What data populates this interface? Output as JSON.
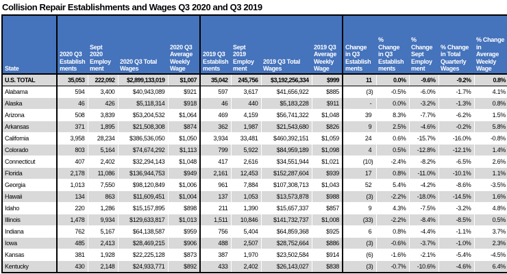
{
  "title": "Collision Repair Establishments and Wages Q3 2020 and Q3 2019",
  "colors": {
    "header_bg": "#4573BC",
    "header_text": "#FFFFFF",
    "row_alt_bg": "#D9D9D9",
    "row_bg": "#FFFFFF",
    "border": "#000000"
  },
  "table": {
    "columns": [
      {
        "label": "State"
      },
      {
        "label": "2020 Q3\nEstablish\nments"
      },
      {
        "label": "Sept\n2020\nEmploy\nment"
      },
      {
        "label": "2020 Q3 Total\nWages"
      },
      {
        "label": "2020 Q3\nAverage\nWeekly\nWage"
      },
      {
        "label": "2019 Q3\nEstablish\nments"
      },
      {
        "label": "Sept\n2019\nEmploy\nment"
      },
      {
        "label": "2019 Q3 Total\nWages"
      },
      {
        "label": "2019 Q3\nAverage\nWeekly\nWage"
      },
      {
        "label": "Change\nin Q3\nEstablish\nments"
      },
      {
        "label": "%\nChange\nin Q3\nEstablish\nments"
      },
      {
        "label": "%\nChange\nSept\nEmploy\nment"
      },
      {
        "label": "% Change\nin Total\nQuarterly\nWages"
      },
      {
        "label": "% Change\nin\nAverage\nWeekly\nWage"
      }
    ],
    "rows": [
      {
        "state": "U.S. TOTAL",
        "total": true,
        "values": [
          "35,053",
          "222,092",
          "$2,899,133,019",
          "$1,007",
          "35,042",
          "245,756",
          "$3,192,256,334",
          "$999",
          "11 ",
          "0.0%",
          "-9.6%",
          "-9.2%",
          "0.8%"
        ]
      },
      {
        "state": "Alabama",
        "values": [
          "594",
          "3,400",
          "$40,943,089",
          "$921",
          "597",
          "3,617",
          "$41,656,922",
          "$885",
          "(3)",
          "-0.5%",
          "-6.0%",
          "-1.7%",
          "4.1%"
        ]
      },
      {
        "state": "Alaska",
        "values": [
          "46",
          "426",
          "$5,118,314",
          "$918",
          "46",
          "440",
          "$5,183,228",
          "$911",
          "- ",
          "0.0%",
          "-3.2%",
          "-1.3%",
          "0.8%"
        ]
      },
      {
        "state": "Arizona",
        "values": [
          "508",
          "3,839",
          "$53,204,532",
          "$1,064",
          "469",
          "4,159",
          "$56,741,322",
          "$1,048",
          "39 ",
          "8.3%",
          "-7.7%",
          "-6.2%",
          "1.5%"
        ]
      },
      {
        "state": "Arkansas",
        "values": [
          "371",
          "1,895",
          "$21,508,308",
          "$874",
          "362",
          "1,987",
          "$21,543,680",
          "$826",
          "9 ",
          "2.5%",
          "-4.6%",
          "-0.2%",
          "5.8%"
        ]
      },
      {
        "state": "California",
        "values": [
          "3,958",
          "28,234",
          "$386,536,050",
          "$1,050",
          "3,934",
          "33,481",
          "$460,392,151",
          "$1,059",
          "24 ",
          "0.6%",
          "-15.7%",
          "-16.0%",
          "-0.8%"
        ]
      },
      {
        "state": "Colorado",
        "values": [
          "803",
          "5,164",
          "$74,674,292",
          "$1,113",
          "799",
          "5,922",
          "$84,959,189",
          "$1,098",
          "4 ",
          "0.5%",
          "-12.8%",
          "-12.1%",
          "1.4%"
        ]
      },
      {
        "state": "Connecticut",
        "values": [
          "407",
          "2,402",
          "$32,294,143",
          "$1,048",
          "417",
          "2,616",
          "$34,551,944",
          "$1,021",
          "(10)",
          "-2.4%",
          "-8.2%",
          "-6.5%",
          "2.6%"
        ]
      },
      {
        "state": "Florida",
        "values": [
          "2,178",
          "11,086",
          "$136,944,753",
          "$949",
          "2,161",
          "12,453",
          "$152,287,604",
          "$939",
          "17 ",
          "0.8%",
          "-11.0%",
          "-10.1%",
          "1.1%"
        ]
      },
      {
        "state": "Georgia",
        "values": [
          "1,013",
          "7,550",
          "$98,120,849",
          "$1,006",
          "961",
          "7,884",
          "$107,308,713",
          "$1,043",
          "52 ",
          "5.4%",
          "-4.2%",
          "-8.6%",
          "-3.5%"
        ]
      },
      {
        "state": "Hawaii",
        "values": [
          "134",
          "863",
          "$11,609,451",
          "$1,004",
          "137",
          "1,053",
          "$13,573,878",
          "$988",
          "(3)",
          "-2.2%",
          "-18.0%",
          "-14.5%",
          "1.6%"
        ]
      },
      {
        "state": "Idaho",
        "values": [
          "220",
          "1,286",
          "$15,157,895",
          "$898",
          "211",
          "1,390",
          "$15,657,337",
          "$857",
          "9 ",
          "4.3%",
          "-7.5%",
          "-3.2%",
          "4.8%"
        ]
      },
      {
        "state": "Illinois",
        "values": [
          "1,478",
          "9,934",
          "$129,633,817",
          "$1,013",
          "1,511",
          "10,846",
          "$141,732,737",
          "$1,008",
          "(33)",
          "-2.2%",
          "-8.4%",
          "-8.5%",
          "0.5%"
        ]
      },
      {
        "state": "Indiana",
        "values": [
          "762",
          "5,167",
          "$64,138,587",
          "$959",
          "756",
          "5,404",
          "$64,859,368",
          "$925",
          "6 ",
          "0.8%",
          "-4.4%",
          "-1.1%",
          "3.7%"
        ]
      },
      {
        "state": "Iowa",
        "values": [
          "485",
          "2,413",
          "$28,469,215",
          "$906",
          "488",
          "2,507",
          "$28,752,664",
          "$886",
          "(3)",
          "-0.6%",
          "-3.7%",
          "-1.0%",
          "2.3%"
        ]
      },
      {
        "state": "Kansas",
        "values": [
          "381",
          "1,928",
          "$22,225,128",
          "$873",
          "387",
          "1,970",
          "$23,502,584",
          "$914",
          "(6)",
          "-1.6%",
          "-2.1%",
          "-5.4%",
          "-4.5%"
        ]
      },
      {
        "state": "Kentucky",
        "values": [
          "430",
          "2,148",
          "$24,933,771",
          "$892",
          "433",
          "2,402",
          "$26,143,027",
          "$838",
          "(3)",
          "-0.7%",
          "-10.6%",
          "-4.6%",
          "6.4%"
        ]
      }
    ]
  }
}
